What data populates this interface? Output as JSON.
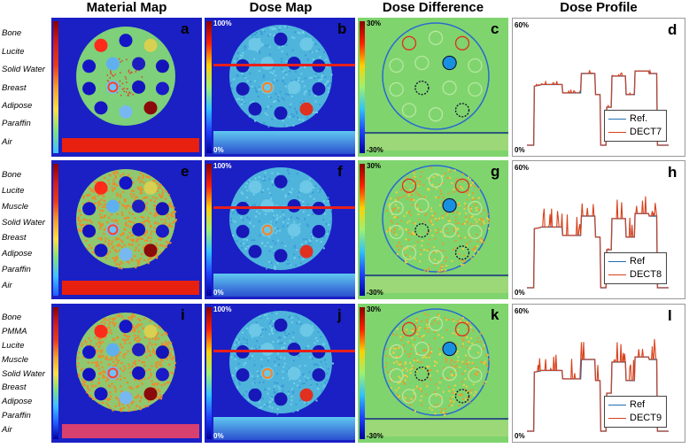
{
  "column_titles": [
    "Material Map",
    "Dose Map",
    "Dose Difference",
    "Dose Profile"
  ],
  "rows": [
    {
      "materials": [
        "Bone",
        "Lucite",
        "Solid Water",
        "Breast",
        "Adipose",
        "Paraffin",
        "Air"
      ],
      "letters": [
        "a",
        "b",
        "c",
        "d"
      ],
      "dose_map_range": [
        "100%",
        "0%"
      ],
      "dose_diff_range": [
        "30%",
        "-30%"
      ],
      "profile_range": [
        "60%",
        "0%"
      ],
      "legend": [
        "Ref.",
        "DECT7"
      ]
    },
    {
      "materials": [
        "Bone",
        "Lucite",
        "Muscle",
        "Solid Water",
        "Breast",
        "Adipose",
        "Paraffin",
        "Air"
      ],
      "letters": [
        "e",
        "f",
        "g",
        "h"
      ],
      "dose_map_range": [
        "100%",
        "0%"
      ],
      "dose_diff_range": [
        "30%",
        "-30%"
      ],
      "profile_range": [
        "60%",
        "0%"
      ],
      "legend": [
        "Ref",
        "DECT8"
      ]
    },
    {
      "materials": [
        "Bone",
        "PMMA",
        "Lucite",
        "Muscle",
        "Solid Water",
        "Breast",
        "Adipose",
        "Paraffin",
        "Air"
      ],
      "letters": [
        "i",
        "j",
        "k",
        "l"
      ],
      "dose_map_range": [
        "100%",
        "0%"
      ],
      "dose_diff_range": [
        "30%",
        "-30%"
      ],
      "profile_range": [
        "60%",
        "0%"
      ],
      "legend": [
        "Ref",
        "DECT9"
      ]
    }
  ],
  "colors": {
    "ref_line": "#1f6fb4",
    "dect_line": "#d9401a",
    "map_background": "#1a20c4",
    "water_green": "#7ed07a",
    "diff_green": "#7fd46e",
    "red_line": "#e8201a"
  }
}
